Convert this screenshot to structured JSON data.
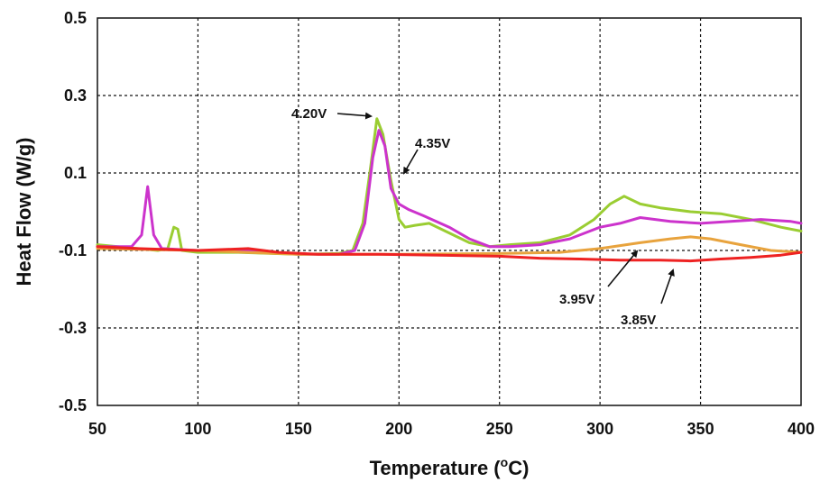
{
  "chart_data": {
    "type": "line",
    "xlabel": "Temperature (",
    "xlabel_sup": "o",
    "xlabel_tail": "C)",
    "ylabel": "Heat Flow (W/g)",
    "xlim": [
      50,
      400
    ],
    "ylim": [
      -0.5,
      0.5
    ],
    "x_ticks": [
      50,
      100,
      150,
      200,
      250,
      300,
      350,
      400
    ],
    "y_ticks": [
      0.5,
      0.3,
      0.1,
      -0.1,
      -0.3,
      -0.5
    ],
    "y_tick_labels": [
      "0.5",
      "0.3",
      "0.1",
      "-0.1",
      "-0.3",
      "-0.5"
    ],
    "grid": true,
    "series": [
      {
        "name": "4.20V",
        "color": "#9acd32",
        "points": [
          [
            50,
            -0.085
          ],
          [
            60,
            -0.09
          ],
          [
            70,
            -0.095
          ],
          [
            80,
            -0.1
          ],
          [
            85,
            -0.095
          ],
          [
            88,
            -0.04
          ],
          [
            90,
            -0.045
          ],
          [
            92,
            -0.1
          ],
          [
            100,
            -0.105
          ],
          [
            120,
            -0.105
          ],
          [
            150,
            -0.11
          ],
          [
            170,
            -0.108
          ],
          [
            177,
            -0.1
          ],
          [
            182,
            -0.03
          ],
          [
            186,
            0.12
          ],
          [
            189,
            0.24
          ],
          [
            192,
            0.2
          ],
          [
            196,
            0.08
          ],
          [
            200,
            -0.02
          ],
          [
            203,
            -0.04
          ],
          [
            208,
            -0.035
          ],
          [
            215,
            -0.03
          ],
          [
            225,
            -0.055
          ],
          [
            235,
            -0.08
          ],
          [
            245,
            -0.09
          ],
          [
            255,
            -0.085
          ],
          [
            270,
            -0.08
          ],
          [
            285,
            -0.06
          ],
          [
            297,
            -0.02
          ],
          [
            305,
            0.02
          ],
          [
            312,
            0.04
          ],
          [
            320,
            0.02
          ],
          [
            330,
            0.01
          ],
          [
            345,
            0.0
          ],
          [
            360,
            -0.005
          ],
          [
            375,
            -0.02
          ],
          [
            390,
            -0.04
          ],
          [
            400,
            -0.05
          ]
        ]
      },
      {
        "name": "4.35V",
        "color": "#cc33cc",
        "points": [
          [
            50,
            -0.09
          ],
          [
            60,
            -0.09
          ],
          [
            67,
            -0.09
          ],
          [
            72,
            -0.06
          ],
          [
            75,
            0.065
          ],
          [
            78,
            -0.06
          ],
          [
            82,
            -0.095
          ],
          [
            100,
            -0.1
          ],
          [
            120,
            -0.1
          ],
          [
            150,
            -0.11
          ],
          [
            170,
            -0.11
          ],
          [
            178,
            -0.1
          ],
          [
            183,
            -0.03
          ],
          [
            187,
            0.14
          ],
          [
            190,
            0.21
          ],
          [
            193,
            0.17
          ],
          [
            196,
            0.06
          ],
          [
            200,
            0.02
          ],
          [
            205,
            0.005
          ],
          [
            212,
            -0.01
          ],
          [
            225,
            -0.04
          ],
          [
            235,
            -0.07
          ],
          [
            245,
            -0.09
          ],
          [
            255,
            -0.09
          ],
          [
            270,
            -0.085
          ],
          [
            285,
            -0.07
          ],
          [
            300,
            -0.04
          ],
          [
            310,
            -0.03
          ],
          [
            320,
            -0.015
          ],
          [
            335,
            -0.025
          ],
          [
            350,
            -0.03
          ],
          [
            365,
            -0.025
          ],
          [
            380,
            -0.02
          ],
          [
            395,
            -0.025
          ],
          [
            400,
            -0.03
          ]
        ]
      },
      {
        "name": "3.95V",
        "color": "#e8a33d",
        "points": [
          [
            50,
            -0.095
          ],
          [
            100,
            -0.1
          ],
          [
            150,
            -0.11
          ],
          [
            200,
            -0.11
          ],
          [
            250,
            -0.108
          ],
          [
            280,
            -0.105
          ],
          [
            300,
            -0.095
          ],
          [
            320,
            -0.08
          ],
          [
            335,
            -0.07
          ],
          [
            345,
            -0.065
          ],
          [
            355,
            -0.07
          ],
          [
            370,
            -0.085
          ],
          [
            385,
            -0.1
          ],
          [
            400,
            -0.105
          ]
        ]
      },
      {
        "name": "3.85V",
        "color": "#ee2222",
        "points": [
          [
            50,
            -0.09
          ],
          [
            70,
            -0.095
          ],
          [
            100,
            -0.1
          ],
          [
            125,
            -0.095
          ],
          [
            140,
            -0.105
          ],
          [
            160,
            -0.11
          ],
          [
            190,
            -0.11
          ],
          [
            220,
            -0.112
          ],
          [
            250,
            -0.115
          ],
          [
            270,
            -0.12
          ],
          [
            290,
            -0.122
          ],
          [
            310,
            -0.125
          ],
          [
            330,
            -0.125
          ],
          [
            345,
            -0.127
          ],
          [
            360,
            -0.122
          ],
          [
            375,
            -0.118
          ],
          [
            390,
            -0.112
          ],
          [
            400,
            -0.105
          ]
        ]
      }
    ],
    "annotations": [
      {
        "text": "4.20V",
        "label_at": [
          323,
          126
        ],
        "arrow_from": [
          374,
          126
        ],
        "arrow_to": [
          411,
          129
        ]
      },
      {
        "text": "4.35V",
        "label_at": [
          460,
          159
        ],
        "arrow_from": [
          463,
          166
        ],
        "arrow_to": [
          448,
          192
        ]
      },
      {
        "text": "3.95V",
        "label_at": [
          620,
          332
        ],
        "arrow_from": [
          674,
          318
        ],
        "arrow_to": [
          706,
          279
        ]
      },
      {
        "text": "3.85V",
        "label_at": [
          688,
          355
        ],
        "arrow_from": [
          733,
          337
        ],
        "arrow_to": [
          746,
          300
        ]
      }
    ]
  }
}
